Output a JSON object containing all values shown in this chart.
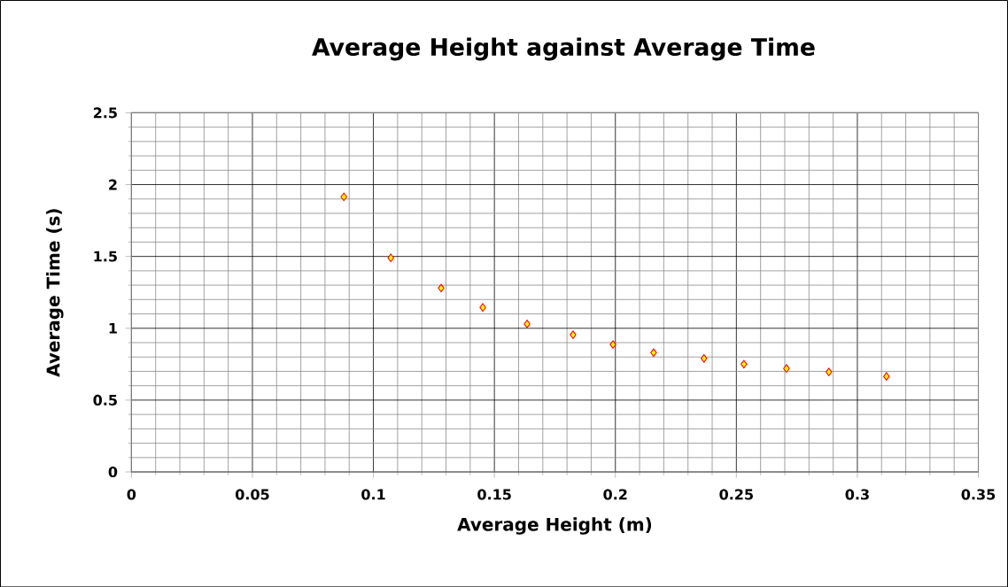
{
  "chart_data": {
    "type": "scatter",
    "title": "Average Height against Average Time",
    "xlabel": "Average Height (m)",
    "ylabel": "Average Time (s)",
    "x": [
      0.0878,
      0.1072,
      0.128,
      0.1452,
      0.1635,
      0.1825,
      0.199,
      0.2158,
      0.2366,
      0.2531,
      0.2707,
      0.2882,
      0.312
    ],
    "values": [
      1.915,
      1.49,
      1.28,
      1.145,
      1.03,
      0.955,
      0.887,
      0.83,
      0.79,
      0.75,
      0.72,
      0.696,
      0.665
    ],
    "color": "#ffff00",
    "marker": "diamond",
    "grid": true,
    "xlim": [
      0,
      0.35
    ],
    "xticks": [
      0,
      0.05,
      0.1,
      0.15,
      0.2,
      0.25,
      0.3,
      0.35
    ],
    "ylim": [
      0,
      2.5
    ],
    "yticks": [
      0,
      0.5,
      1,
      1.5,
      2,
      2.5
    ]
  }
}
